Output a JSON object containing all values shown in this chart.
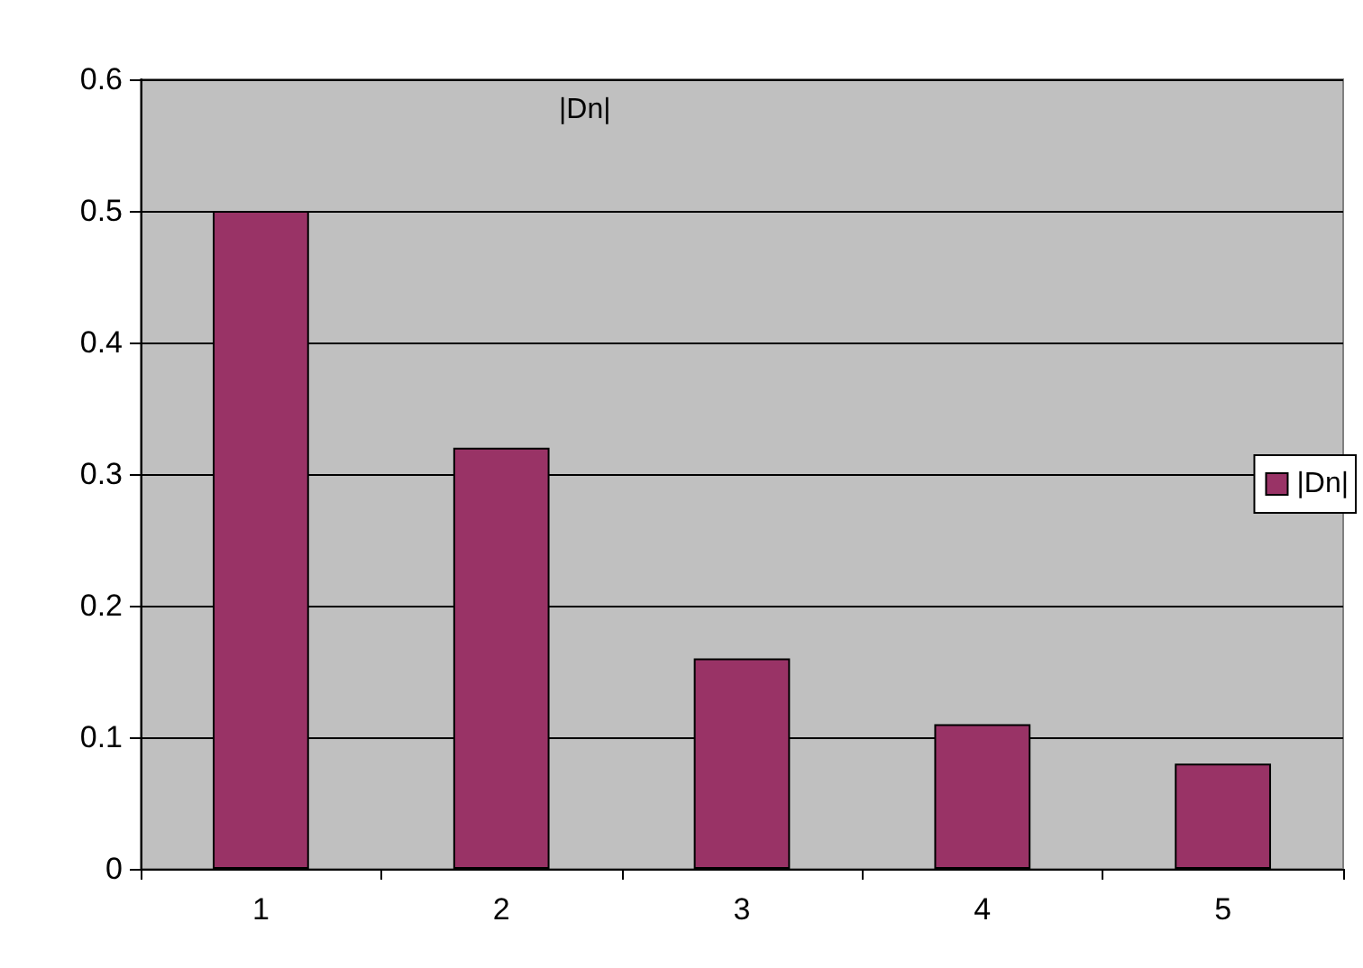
{
  "chart_data": {
    "type": "bar",
    "title": "|Dn|",
    "categories": [
      "1",
      "2",
      "3",
      "4",
      "5"
    ],
    "series": [
      {
        "name": "|Dn|",
        "color": "#993366",
        "values": [
          0.5,
          0.32,
          0.16,
          0.11,
          0.08
        ]
      }
    ],
    "ylim": [
      0,
      0.6
    ],
    "yticks": [
      0,
      0.1,
      0.2,
      0.3,
      0.4,
      0.5,
      0.6
    ],
    "grid": "y",
    "legend": "right"
  }
}
